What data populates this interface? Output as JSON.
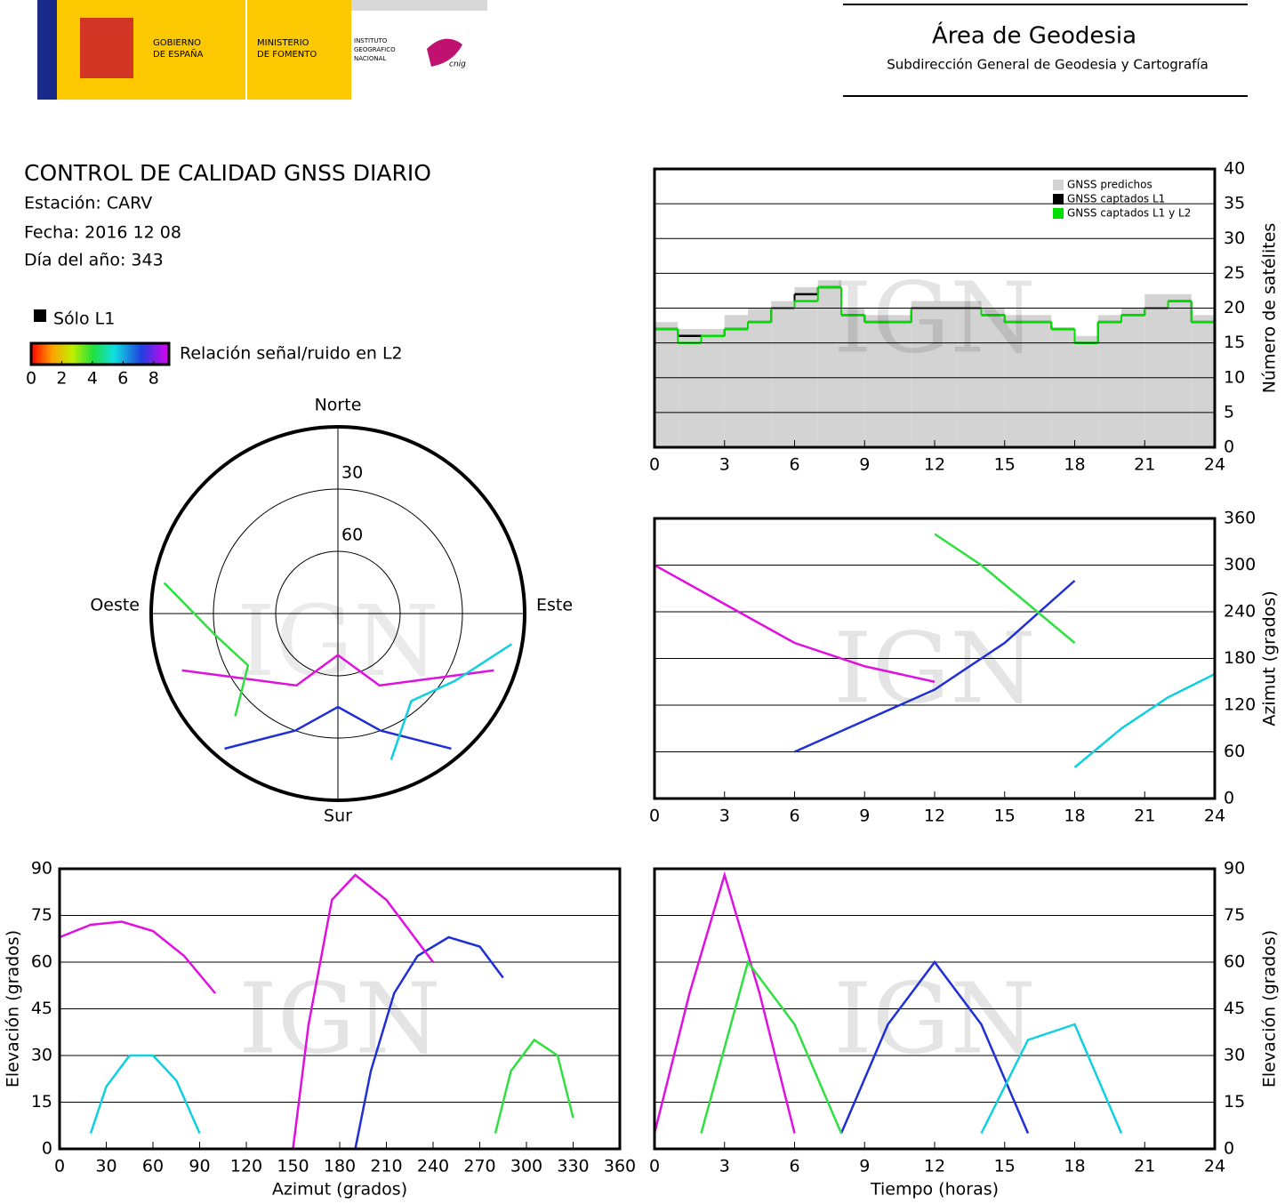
{
  "header": {
    "gobierno": [
      "GOBIERNO",
      "DE ESPAÑA"
    ],
    "ministerio": [
      "MINISTERIO",
      "DE FOMENTO"
    ],
    "instituto": [
      "INSTITUTO",
      "GEOGRÁFICO",
      "NACIONAL"
    ],
    "cnig": "cnig",
    "area": "Área de Geodesia",
    "subdireccion": "Subdirección General de Geodesia y Cartografía"
  },
  "report": {
    "title": "CONTROL DE CALIDAD GNSS DIARIO",
    "station": "Estación: CARV",
    "date": "Fecha: 2016 12 08",
    "doy": "Día del año: 343"
  },
  "chart_data": [
    {
      "type": "polar",
      "watermark": "IGN",
      "directions": {
        "north": "Norte",
        "south": "Sur",
        "east": "Este",
        "west": "Oeste"
      },
      "rings": [
        30,
        60
      ],
      "legend_l1": "Sólo L1",
      "colorbar": {
        "label": "Relación señal/ruido en L2",
        "lim": [
          0,
          9
        ],
        "ticks": [
          0,
          2,
          4,
          6,
          8
        ]
      },
      "series": [
        {
          "color": "#1f2fd8",
          "azimuth": [
            220,
            200,
            180,
            160,
            140
          ],
          "elevation": [
            5,
            30,
            45,
            30,
            5
          ]
        },
        {
          "color": "#e010e0",
          "azimuth": [
            250,
            210,
            180,
            150,
            110
          ],
          "elevation": [
            10,
            50,
            70,
            50,
            10
          ]
        },
        {
          "color": "#30e040",
          "azimuth": [
            280,
            260,
            240,
            225
          ],
          "elevation": [
            5,
            30,
            40,
            20
          ]
        },
        {
          "color": "#10d0e0",
          "azimuth": [
            100,
            120,
            140,
            160
          ],
          "elevation": [
            5,
            25,
            35,
            15
          ]
        }
      ]
    },
    {
      "type": "bar",
      "watermark": "IGN",
      "y_label": "Número de satélites",
      "yaxis": "right",
      "legend": "upper right",
      "grid": true,
      "xlim": [
        0,
        24
      ],
      "xticks": [
        0,
        3,
        6,
        9,
        12,
        15,
        18,
        21,
        24
      ],
      "ylim": [
        0,
        40
      ],
      "yticks": [
        0,
        5,
        10,
        15,
        20,
        25,
        30,
        35,
        40
      ],
      "x": [
        0,
        1,
        2,
        3,
        4,
        5,
        6,
        7,
        8,
        9,
        10,
        11,
        12,
        13,
        14,
        15,
        16,
        17,
        18,
        19,
        20,
        21,
        22,
        23,
        24
      ],
      "series": [
        {
          "name": "GNSS predichos",
          "color": "#d3d3d3",
          "style": "bars",
          "values": [
            18,
            17,
            17,
            19,
            20,
            21,
            23,
            24,
            20,
            19,
            19,
            21,
            21,
            21,
            20,
            19,
            19,
            17,
            16,
            19,
            20,
            22,
            22,
            19,
            18
          ]
        },
        {
          "name": "GNSS captados L1",
          "color": "#000000",
          "style": "steps",
          "values": [
            17,
            16,
            16,
            17,
            18,
            20,
            22,
            23,
            19,
            18,
            18,
            20,
            20,
            20,
            19,
            18,
            18,
            17,
            15,
            18,
            19,
            20,
            21,
            18,
            17
          ]
        },
        {
          "name": "GNSS captados L1 y L2",
          "color": "#00e000",
          "style": "steps",
          "values": [
            17,
            15,
            16,
            17,
            18,
            20,
            21,
            23,
            19,
            18,
            18,
            20,
            20,
            20,
            19,
            18,
            18,
            17,
            15,
            18,
            19,
            20,
            21,
            18,
            16
          ]
        }
      ]
    },
    {
      "type": "line",
      "watermark": "IGN",
      "y_label": "Azimut (grados)",
      "yaxis": "right",
      "grid": true,
      "xlim": [
        0,
        24
      ],
      "xticks": [
        0,
        3,
        6,
        9,
        12,
        15,
        18,
        21,
        24
      ],
      "ylim": [
        0,
        360
      ],
      "yticks": [
        0,
        60,
        120,
        180,
        240,
        300,
        360
      ],
      "series": [
        {
          "color": "#e010e0",
          "x": [
            0,
            3,
            6,
            9,
            12
          ],
          "values": [
            300,
            250,
            200,
            170,
            150
          ]
        },
        {
          "color": "#1f2fd8",
          "x": [
            6,
            9,
            12,
            15,
            18
          ],
          "values": [
            60,
            100,
            140,
            200,
            280
          ]
        },
        {
          "color": "#30e040",
          "x": [
            12,
            14,
            16,
            18
          ],
          "values": [
            340,
            300,
            250,
            200
          ]
        },
        {
          "color": "#10d0e0",
          "x": [
            18,
            20,
            22,
            24
          ],
          "values": [
            40,
            90,
            130,
            160
          ]
        }
      ]
    },
    {
      "type": "line",
      "watermark": "IGN",
      "x_label": "Azimut (grados)",
      "y_label": "Elevación (grados)",
      "yaxis": "left",
      "grid": true,
      "xlim": [
        0,
        360
      ],
      "xticks": [
        0,
        30,
        60,
        90,
        120,
        150,
        180,
        210,
        240,
        270,
        300,
        330,
        360
      ],
      "ylim": [
        0,
        90
      ],
      "yticks": [
        0,
        15,
        30,
        45,
        60,
        75,
        90
      ],
      "series": [
        {
          "color": "#e010e0",
          "x": [
            0,
            20,
            40,
            60,
            80,
            100
          ],
          "values": [
            68,
            72,
            73,
            70,
            62,
            50
          ]
        },
        {
          "color": "#1f2fd8",
          "x": [
            190,
            200,
            215,
            230,
            250,
            270,
            285
          ],
          "values": [
            0,
            25,
            50,
            62,
            68,
            65,
            55
          ]
        },
        {
          "color": "#10d0e0",
          "x": [
            20,
            30,
            45,
            60,
            75,
            90
          ],
          "values": [
            5,
            20,
            30,
            30,
            22,
            5
          ]
        },
        {
          "color": "#30e040",
          "x": [
            280,
            290,
            305,
            320,
            330
          ],
          "values": [
            5,
            25,
            35,
            30,
            10
          ]
        },
        {
          "color": "#e010e0",
          "x": [
            150,
            160,
            175,
            190,
            210,
            240
          ],
          "values": [
            0,
            40,
            80,
            88,
            80,
            60
          ]
        }
      ]
    },
    {
      "type": "line",
      "watermark": "IGN",
      "x_label": "Tiempo (horas)",
      "y_label": "Elevación (grados)",
      "yaxis": "right",
      "grid": true,
      "xlim": [
        0,
        24
      ],
      "xticks": [
        0,
        3,
        6,
        9,
        12,
        15,
        18,
        21,
        24
      ],
      "ylim": [
        0,
        90
      ],
      "yticks": [
        0,
        15,
        30,
        45,
        60,
        75,
        90
      ],
      "series": [
        {
          "color": "#e010e0",
          "x": [
            0,
            1.5,
            3,
            4.5,
            6
          ],
          "values": [
            5,
            50,
            88,
            50,
            5
          ]
        },
        {
          "color": "#1f2fd8",
          "x": [
            8,
            10,
            12,
            14,
            16
          ],
          "values": [
            5,
            40,
            60,
            40,
            5
          ]
        },
        {
          "color": "#10d0e0",
          "x": [
            14,
            16,
            18,
            20
          ],
          "values": [
            5,
            35,
            40,
            5
          ]
        },
        {
          "color": "#30e040",
          "x": [
            2,
            4,
            6,
            8
          ],
          "values": [
            5,
            60,
            40,
            5
          ]
        }
      ]
    }
  ]
}
